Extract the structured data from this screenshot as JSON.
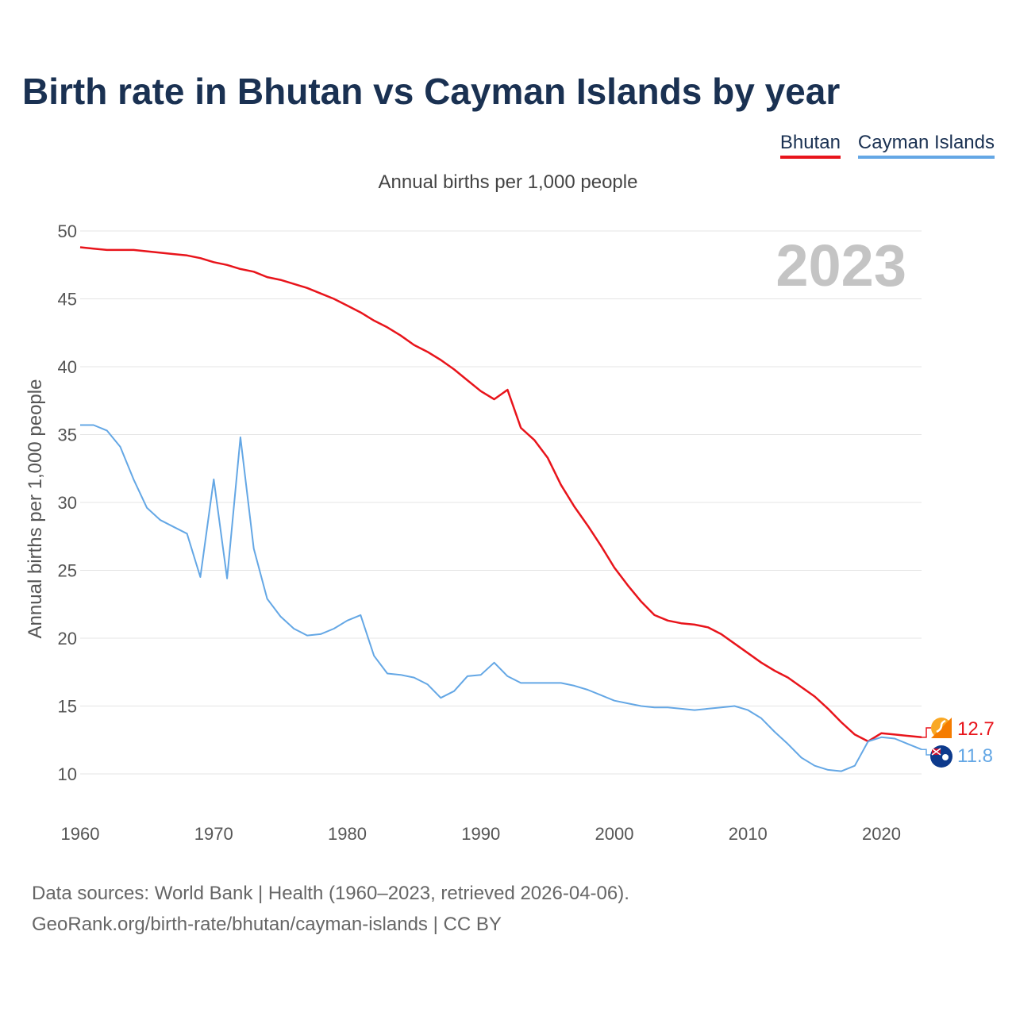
{
  "title": "Birth rate in Bhutan vs Cayman Islands by year",
  "subtitle": "Annual births per 1,000 people",
  "year_badge": "2023",
  "footer": {
    "line1": "Data sources: World Bank | Health (1960–2023, retrieved 2026-04-06).",
    "line2": "GeoRank.org/birth-rate/bhutan/cayman-islands | CC BY"
  },
  "colors": {
    "bhutan": "#e8141b",
    "cayman": "#64a7e5",
    "title": "#1a3152"
  },
  "chart_data": {
    "type": "line",
    "title": "Birth rate in Bhutan vs Cayman Islands by year",
    "ylabel": "Annual births per 1,000 people",
    "xlabel": "",
    "xlim": [
      1960,
      2023
    ],
    "ylim": [
      10,
      50
    ],
    "x_ticks": [
      1960,
      1970,
      1980,
      1990,
      2000,
      2010,
      2020
    ],
    "y_ticks": [
      10,
      15,
      20,
      25,
      30,
      35,
      40,
      45,
      50
    ],
    "legend": [
      "Bhutan",
      "Cayman Islands"
    ],
    "legend_position": "top-right",
    "grid": true,
    "x": [
      1960,
      1961,
      1962,
      1963,
      1964,
      1965,
      1966,
      1967,
      1968,
      1969,
      1970,
      1971,
      1972,
      1973,
      1974,
      1975,
      1976,
      1977,
      1978,
      1979,
      1980,
      1981,
      1982,
      1983,
      1984,
      1985,
      1986,
      1987,
      1988,
      1989,
      1990,
      1991,
      1992,
      1993,
      1994,
      1995,
      1996,
      1997,
      1998,
      1999,
      2000,
      2001,
      2002,
      2003,
      2004,
      2005,
      2006,
      2007,
      2008,
      2009,
      2010,
      2011,
      2012,
      2013,
      2014,
      2015,
      2016,
      2017,
      2018,
      2019,
      2020,
      2021,
      2022,
      2023
    ],
    "series": [
      {
        "name": "Bhutan",
        "color_key": "bhutan",
        "end_label": "12.7",
        "values": [
          48.8,
          48.7,
          48.6,
          48.6,
          48.6,
          48.5,
          48.4,
          48.3,
          48.2,
          48.0,
          47.7,
          47.5,
          47.2,
          47.0,
          46.6,
          46.4,
          46.1,
          45.8,
          45.4,
          45.0,
          44.5,
          44.0,
          43.4,
          42.9,
          42.3,
          41.6,
          41.1,
          40.5,
          39.8,
          39.0,
          38.2,
          37.6,
          38.3,
          35.5,
          34.6,
          33.3,
          31.3,
          29.7,
          28.3,
          26.8,
          25.2,
          23.9,
          22.7,
          21.7,
          21.3,
          21.1,
          21.0,
          20.8,
          20.3,
          19.6,
          18.9,
          18.2,
          17.6,
          17.1,
          16.4,
          15.7,
          14.8,
          13.8,
          12.9,
          12.4,
          13.0,
          12.9,
          12.8,
          12.7
        ]
      },
      {
        "name": "Cayman Islands",
        "color_key": "cayman",
        "end_label": "11.8",
        "values": [
          35.7,
          35.7,
          35.3,
          34.1,
          31.7,
          29.6,
          28.7,
          28.2,
          27.7,
          24.5,
          31.7,
          24.4,
          34.8,
          26.6,
          22.9,
          21.6,
          20.7,
          20.2,
          20.3,
          20.7,
          21.3,
          21.7,
          18.7,
          17.4,
          17.3,
          17.1,
          16.6,
          15.6,
          16.1,
          17.2,
          17.3,
          18.2,
          17.2,
          16.7,
          16.7,
          16.7,
          16.7,
          16.5,
          16.2,
          15.8,
          15.4,
          15.2,
          15.0,
          14.9,
          14.9,
          14.8,
          14.7,
          14.8,
          14.9,
          15.0,
          14.7,
          14.1,
          13.1,
          12.2,
          11.2,
          10.6,
          10.3,
          10.2,
          10.6,
          12.4,
          12.7,
          12.6,
          12.2,
          11.8
        ]
      }
    ]
  }
}
